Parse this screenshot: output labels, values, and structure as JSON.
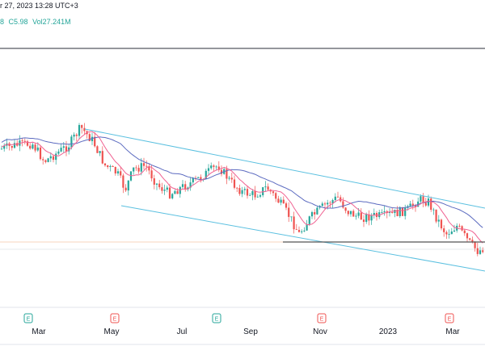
{
  "header": {
    "datetime": "r 27, 2023 13:28 UTC+3",
    "close_fragment": "8",
    "close": "C5.98",
    "volume": "Vol27.241M"
  },
  "colors": {
    "up": "#26a69a",
    "down": "#ef5350",
    "ma_fast": "#f06292",
    "ma_slow": "#5c6bc0",
    "channel": "#5bc0e0",
    "support": "#555555",
    "earnings_green": "#26a69a",
    "earnings_red": "#ef5350"
  },
  "chart_data": {
    "type": "candlestick",
    "x_range": [
      "2022-01",
      "2023-03"
    ],
    "x_ticks": [
      "Mar",
      "May",
      "Jul",
      "Sep",
      "Nov",
      "2023",
      "Mar"
    ],
    "earnings_markers": [
      {
        "label": "E",
        "color": "green",
        "date": "2022-02"
      },
      {
        "label": "E",
        "color": "red",
        "date": "2022-04"
      },
      {
        "label": "E",
        "color": "green",
        "date": "2022-07"
      },
      {
        "label": "E",
        "color": "red",
        "date": "2022-10"
      },
      {
        "label": "E",
        "color": "red",
        "date": "2023-02"
      }
    ],
    "series": [
      {
        "role": "price",
        "trend": "downward channel"
      },
      {
        "role": "moving_average_fast"
      },
      {
        "role": "moving_average_slow"
      }
    ],
    "annotations": [
      "descending channel",
      "horizontal support line"
    ],
    "last_close": 5.98,
    "volume": "27.241M"
  }
}
